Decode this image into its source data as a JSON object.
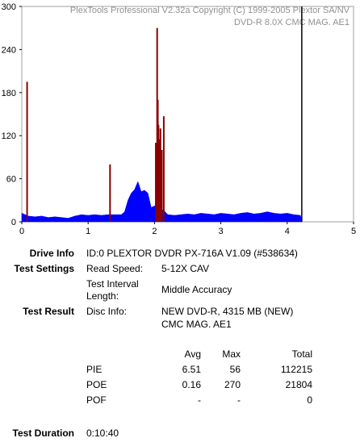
{
  "chart_data": {
    "type": "area",
    "annotations": [
      "PlexTools Professional V2.32a Copyright (C) 1999-2005 Plextor SA/NV",
      "DVD-R   8.0X   CMC MAG. AE1"
    ],
    "xlim": [
      0,
      5
    ],
    "xticks": [
      0,
      1,
      2,
      3,
      4,
      5
    ],
    "ylim": [
      0,
      300
    ],
    "yticks": [
      0,
      60,
      120,
      180,
      240,
      300
    ],
    "grid": false,
    "end_x": 4.22,
    "end_color": "#000000",
    "series": [
      {
        "type": "area",
        "color": "#0000ff",
        "x": [
          0,
          0.05,
          0.1,
          0.2,
          0.3,
          0.4,
          0.5,
          0.6,
          0.7,
          0.8,
          0.9,
          1.0,
          1.1,
          1.2,
          1.3,
          1.4,
          1.5,
          1.55,
          1.6,
          1.65,
          1.7,
          1.75,
          1.8,
          1.85,
          1.9,
          1.95,
          2.0,
          2.05,
          2.1,
          2.15,
          2.2,
          2.3,
          2.4,
          2.5,
          2.6,
          2.7,
          2.8,
          2.9,
          3.0,
          3.1,
          3.2,
          3.3,
          3.4,
          3.5,
          3.6,
          3.7,
          3.8,
          3.9,
          4.0,
          4.1,
          4.2,
          4.22
        ],
        "values": [
          12,
          10,
          8,
          7,
          8,
          6,
          7,
          6,
          5,
          8,
          10,
          9,
          10,
          9,
          10,
          10,
          10,
          14,
          30,
          40,
          45,
          56,
          42,
          44,
          40,
          20,
          22,
          25,
          18,
          15,
          10,
          9,
          10,
          11,
          10,
          12,
          11,
          10,
          12,
          11,
          10,
          12,
          13,
          11,
          12,
          14,
          12,
          11,
          12,
          10,
          9,
          0
        ]
      },
      {
        "type": "bar",
        "color": "#8b0000",
        "x": [
          0.08,
          1.33,
          2.02,
          2.04,
          2.05,
          2.06,
          2.07,
          2.09,
          2.11,
          2.14
        ],
        "values": [
          195,
          80,
          110,
          270,
          170,
          135,
          115,
          130,
          100,
          147
        ]
      }
    ]
  },
  "report": {
    "drive_info": {
      "label": "Drive Info",
      "value": "ID:0 PLEXTOR DVDR PX-716A V1.09 (#538634)"
    },
    "test_settings": {
      "label": "Test Settings",
      "items": [
        [
          "Read Speed:",
          "5-12X CAV"
        ],
        [
          "Test Interval Length:",
          "Middle Accuracy"
        ]
      ]
    },
    "test_result": {
      "label": "Test Result",
      "disc_label": "Disc Info:",
      "disc_value": [
        "NEW DVD-R, 4315 MB (NEW)",
        "CMC MAG. AE1"
      ]
    },
    "table": {
      "header": [
        "Avg",
        "Max",
        "Total"
      ],
      "rows": [
        [
          "PIE",
          6.51,
          56,
          112215
        ],
        [
          "POE",
          0.16,
          270,
          21804
        ],
        [
          "POF",
          "-",
          "-",
          0
        ]
      ]
    },
    "duration": {
      "label": "Test Duration",
      "value": "0:10:40"
    }
  }
}
